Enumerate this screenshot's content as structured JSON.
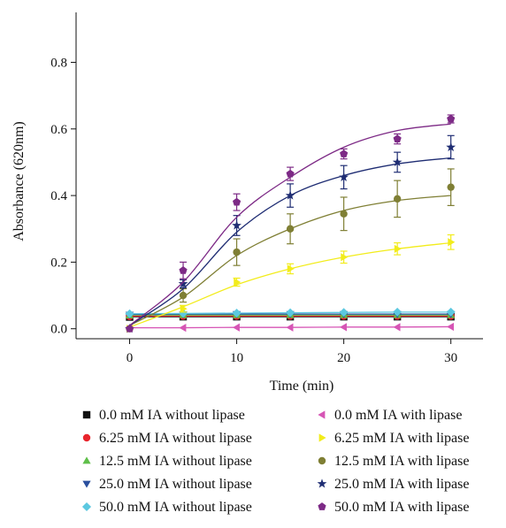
{
  "chart_data": {
    "type": "scatter",
    "title": "",
    "xlabel": "Time (min)",
    "ylabel": "Absorbance (620nm)",
    "xlim": [
      -5,
      33
    ],
    "ylim": [
      -0.03,
      0.95
    ],
    "xticks": [
      0,
      10,
      20,
      30
    ],
    "xtick_labels": [
      "0",
      "10",
      "20",
      "30"
    ],
    "yticks": [
      0.0,
      0.2,
      0.4,
      0.6,
      0.8
    ],
    "ytick_labels": [
      "0.0",
      "0.2",
      "0.4",
      "0.6",
      "0.8"
    ],
    "grid": false,
    "legend_position": "bottom",
    "x": [
      0,
      5,
      10,
      15,
      20,
      25,
      30
    ],
    "series": [
      {
        "name": "0.0 mM IA without lipase",
        "marker": "square",
        "color": "#111111",
        "values": [
          0.035,
          0.036,
          0.036,
          0.036,
          0.036,
          0.036,
          0.036
        ],
        "errors": [
          0,
          0,
          0,
          0,
          0,
          0,
          0
        ],
        "fit": [
          0.036,
          0.036,
          0.036,
          0.036,
          0.036,
          0.036,
          0.036
        ]
      },
      {
        "name": "6.25 mM IA without lipase",
        "marker": "circle",
        "color": "#e8242c",
        "values": [
          0.037,
          0.038,
          0.038,
          0.038,
          0.038,
          0.038,
          0.038
        ],
        "errors": [
          0,
          0,
          0,
          0,
          0,
          0,
          0
        ],
        "fit": [
          0.038,
          0.038,
          0.038,
          0.038,
          0.038,
          0.038,
          0.038
        ]
      },
      {
        "name": "12.5 mM IA without lipase",
        "marker": "triangle-up",
        "color": "#5fbf4a",
        "values": [
          0.04,
          0.041,
          0.041,
          0.041,
          0.041,
          0.041,
          0.041
        ],
        "errors": [
          0,
          0,
          0,
          0,
          0,
          0,
          0
        ],
        "fit": [
          0.041,
          0.041,
          0.041,
          0.041,
          0.041,
          0.041,
          0.041
        ]
      },
      {
        "name": "25.0 mM IA without lipase",
        "marker": "triangle-down",
        "color": "#2a4f9e",
        "values": [
          0.042,
          0.043,
          0.044,
          0.044,
          0.044,
          0.044,
          0.044
        ],
        "errors": [
          0,
          0,
          0,
          0,
          0,
          0,
          0
        ],
        "fit": [
          0.043,
          0.044,
          0.044,
          0.044,
          0.044,
          0.044,
          0.044
        ]
      },
      {
        "name": "50.0 mM IA without lipase",
        "marker": "diamond",
        "color": "#5cc8e0",
        "values": [
          0.045,
          0.046,
          0.047,
          0.048,
          0.049,
          0.05,
          0.05
        ],
        "errors": [
          0,
          0,
          0,
          0,
          0,
          0,
          0
        ],
        "fit": [
          0.045,
          0.046,
          0.047,
          0.048,
          0.049,
          0.05,
          0.05
        ]
      },
      {
        "name": "0.0 mM IA with lipase",
        "marker": "triangle-left",
        "color": "#d655b5",
        "values": [
          0.003,
          0.003,
          0.004,
          0.004,
          0.005,
          0.005,
          0.006
        ],
        "errors": [
          0,
          0,
          0,
          0,
          0,
          0,
          0
        ],
        "fit": [
          0.003,
          0.003,
          0.004,
          0.004,
          0.005,
          0.005,
          0.006
        ]
      },
      {
        "name": "6.25 mM IA with lipase",
        "marker": "triangle-right",
        "color": "#f2ec1b",
        "values": [
          0.0,
          0.06,
          0.14,
          0.18,
          0.215,
          0.24,
          0.26
        ],
        "errors": [
          0,
          0.01,
          0.012,
          0.015,
          0.018,
          0.018,
          0.022
        ],
        "fit": [
          0.005,
          0.066,
          0.132,
          0.18,
          0.215,
          0.24,
          0.258
        ]
      },
      {
        "name": "12.5 mM IA with lipase",
        "marker": "circle",
        "color": "#7f7f34",
        "values": [
          0.0,
          0.1,
          0.23,
          0.3,
          0.345,
          0.39,
          0.425
        ],
        "errors": [
          0,
          0.02,
          0.04,
          0.045,
          0.05,
          0.055,
          0.055
        ],
        "fit": [
          0.01,
          0.095,
          0.22,
          0.3,
          0.355,
          0.385,
          0.4
        ]
      },
      {
        "name": "25.0 mM IA with lipase",
        "marker": "star",
        "color": "#1f2d73",
        "values": [
          0.0,
          0.135,
          0.31,
          0.4,
          0.455,
          0.5,
          0.545
        ],
        "errors": [
          0,
          0.012,
          0.03,
          0.035,
          0.035,
          0.03,
          0.035
        ],
        "fit": [
          0.01,
          0.12,
          0.29,
          0.4,
          0.46,
          0.495,
          0.513
        ]
      },
      {
        "name": "50.0 mM IA with lipase",
        "marker": "pentagon",
        "color": "#7d2a86",
        "values": [
          0.0,
          0.175,
          0.38,
          0.465,
          0.525,
          0.57,
          0.63
        ],
        "errors": [
          0,
          0.025,
          0.025,
          0.02,
          0.015,
          0.015,
          0.012
        ],
        "fit": [
          0.01,
          0.14,
          0.335,
          0.455,
          0.545,
          0.595,
          0.615
        ]
      }
    ]
  }
}
